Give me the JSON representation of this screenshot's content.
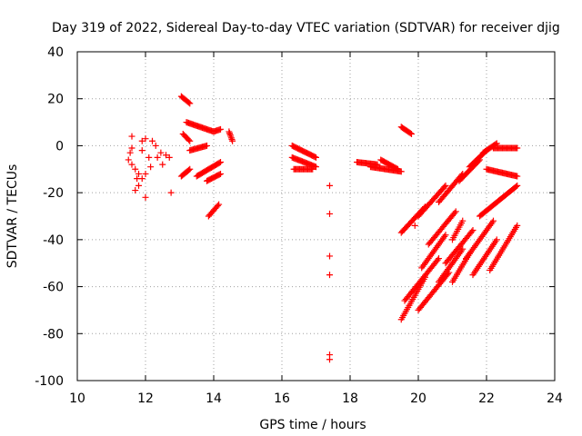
{
  "chart_data": {
    "type": "scatter",
    "title": "Day 319 of 2022, Sidereal Day-to-day VTEC variation (SDTVAR) for receiver djig",
    "xlabel": "GPS time / hours",
    "ylabel": "SDTVAR / TECUs",
    "xlim": [
      10,
      24
    ],
    "ylim": [
      -100,
      40
    ],
    "xticks": [
      10,
      12,
      14,
      16,
      18,
      20,
      22,
      24
    ],
    "yticks": [
      -100,
      -80,
      -60,
      -40,
      -20,
      0,
      20,
      40
    ],
    "grid": true,
    "marker": "+",
    "series_color": "#ff0000",
    "scatter_points": [
      [
        11.6,
        4
      ],
      [
        11.6,
        -1
      ],
      [
        11.55,
        -3
      ],
      [
        11.5,
        -6
      ],
      [
        11.6,
        -8
      ],
      [
        11.7,
        -10
      ],
      [
        11.8,
        -12
      ],
      [
        11.75,
        -14
      ],
      [
        11.8,
        -17
      ],
      [
        11.7,
        -19
      ],
      [
        11.9,
        -2
      ],
      [
        11.9,
        2
      ],
      [
        12.0,
        3
      ],
      [
        12.1,
        -5
      ],
      [
        12.15,
        -9
      ],
      [
        12.2,
        2
      ],
      [
        12.3,
        0
      ],
      [
        12.35,
        -5
      ],
      [
        12.45,
        -3
      ],
      [
        12.5,
        -8
      ],
      [
        12.6,
        -4
      ],
      [
        12.7,
        -5
      ],
      [
        12.0,
        -22
      ],
      [
        12.75,
        -20
      ],
      [
        11.9,
        -14
      ],
      [
        12.0,
        -12
      ]
    ],
    "track_segments": [
      {
        "x": [
          13.05,
          13.3
        ],
        "y": [
          21,
          18
        ]
      },
      {
        "x": [
          13.1,
          13.3
        ],
        "y": [
          5,
          2
        ]
      },
      {
        "x": [
          13.2,
          14.0
        ],
        "y": [
          10,
          6
        ]
      },
      {
        "x": [
          14.0,
          14.2
        ],
        "y": [
          6,
          7
        ]
      },
      {
        "x": [
          13.3,
          13.8
        ],
        "y": [
          -2,
          0
        ]
      },
      {
        "x": [
          13.05,
          13.3
        ],
        "y": [
          -13,
          -10
        ]
      },
      {
        "x": [
          13.5,
          14.2
        ],
        "y": [
          -13,
          -7
        ]
      },
      {
        "x": [
          13.8,
          14.2
        ],
        "y": [
          -15,
          -12
        ]
      },
      {
        "x": [
          13.85,
          14.15
        ],
        "y": [
          -30,
          -25
        ]
      },
      {
        "x": [
          14.45,
          14.55
        ],
        "y": [
          6,
          2
        ]
      },
      {
        "x": [
          16.3,
          17.0
        ],
        "y": [
          0,
          -5
        ]
      },
      {
        "x": [
          16.3,
          17.0
        ],
        "y": [
          -5,
          -9
        ]
      },
      {
        "x": [
          16.35,
          16.9
        ],
        "y": [
          -10,
          -10
        ]
      },
      {
        "x": [
          18.2,
          18.8
        ],
        "y": [
          -7,
          -8
        ]
      },
      {
        "x": [
          18.6,
          19.5
        ],
        "y": [
          -9,
          -11
        ]
      },
      {
        "x": [
          18.9,
          19.4
        ],
        "y": [
          -6,
          -10
        ]
      },
      {
        "x": [
          19.5,
          19.8
        ],
        "y": [
          8,
          5
        ]
      },
      {
        "x": [
          19.5,
          20.2
        ],
        "y": [
          -37,
          -26
        ]
      },
      {
        "x": [
          20.0,
          20.8
        ],
        "y": [
          -30,
          -17
        ]
      },
      {
        "x": [
          20.6,
          21.3
        ],
        "y": [
          -24,
          -12
        ]
      },
      {
        "x": [
          21.2,
          21.8
        ],
        "y": [
          -15,
          -6
        ]
      },
      {
        "x": [
          21.5,
          22.0
        ],
        "y": [
          -9,
          -2
        ]
      },
      {
        "x": [
          21.9,
          22.3
        ],
        "y": [
          -3,
          1
        ]
      },
      {
        "x": [
          22.2,
          22.9
        ],
        "y": [
          -1,
          -1
        ]
      },
      {
        "x": [
          22.0,
          22.9
        ],
        "y": [
          -10,
          -13
        ]
      },
      {
        "x": [
          21.8,
          22.9
        ],
        "y": [
          -30,
          -17
        ]
      },
      {
        "x": [
          21.4,
          22.2
        ],
        "y": [
          -48,
          -32
        ]
      },
      {
        "x": [
          21.0,
          21.5
        ],
        "y": [
          -58,
          -46
        ]
      },
      {
        "x": [
          21.6,
          22.3
        ],
        "y": [
          -55,
          -40
        ]
      },
      {
        "x": [
          22.1,
          22.9
        ],
        "y": [
          -53,
          -34
        ]
      },
      {
        "x": [
          19.5,
          20.2
        ],
        "y": [
          -74,
          -56
        ]
      },
      {
        "x": [
          19.6,
          20.6
        ],
        "y": [
          -66,
          -48
        ]
      },
      {
        "x": [
          20.0,
          20.9
        ],
        "y": [
          -70,
          -54
        ]
      },
      {
        "x": [
          20.1,
          20.8
        ],
        "y": [
          -52,
          -38
        ]
      },
      {
        "x": [
          20.6,
          21.3
        ],
        "y": [
          -58,
          -44
        ]
      },
      {
        "x": [
          20.8,
          21.6
        ],
        "y": [
          -50,
          -36
        ]
      },
      {
        "x": [
          21.0,
          21.3
        ],
        "y": [
          -40,
          -32
        ]
      },
      {
        "x": [
          20.3,
          21.1
        ],
        "y": [
          -42,
          -28
        ]
      }
    ],
    "isolated_points": [
      [
        17.4,
        -17
      ],
      [
        17.4,
        -29
      ],
      [
        17.4,
        -47
      ],
      [
        17.4,
        -55
      ],
      [
        17.4,
        -89
      ],
      [
        17.4,
        -91
      ],
      [
        19.9,
        -34
      ]
    ]
  }
}
